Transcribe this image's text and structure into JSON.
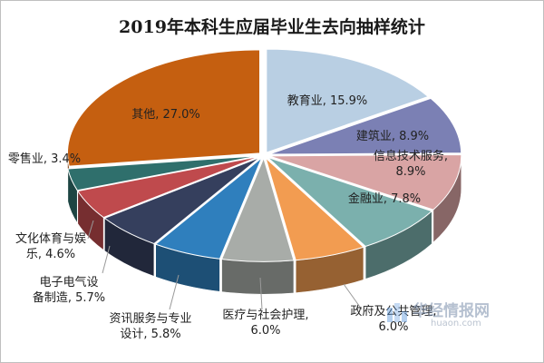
{
  "chart_data": {
    "type": "pie",
    "title": "2019年本科生应届毕业生去向抽样统计",
    "slices": [
      {
        "name": "教育业",
        "value": 15.9,
        "label": "教育业, 15.9%",
        "color": "#b9cfe3"
      },
      {
        "name": "建筑业",
        "value": 8.9,
        "label": "建筑业, 8.9%",
        "color": "#7b80b4"
      },
      {
        "name": "信息技术服务",
        "value": 8.9,
        "label": [
          "信息技术服务,",
          "8.9%"
        ],
        "color": "#d9a4a4"
      },
      {
        "name": "金融业",
        "value": 7.8,
        "label": "金融业, 7.8%",
        "color": "#7bb0ad"
      },
      {
        "name": "政府及公共管理",
        "value": 6.0,
        "label": [
          "政府及公共管理,",
          "6.0%"
        ],
        "color": "#f29c51"
      },
      {
        "name": "医疗与社会护理",
        "value": 6.0,
        "label": [
          "医疗与社会护理,",
          "6.0%"
        ],
        "color": "#a8aca8"
      },
      {
        "name": "资讯服务与专业设计",
        "value": 5.8,
        "label": [
          "资讯服务与专业",
          "设计, 5.8%"
        ],
        "color": "#2f7fbd"
      },
      {
        "name": "电子电气设备制造",
        "value": 5.7,
        "label": [
          "电子电气设",
          "备制造, 5.7%"
        ],
        "color": "#353f5d"
      },
      {
        "name": "文化体育与娱乐",
        "value": 4.6,
        "label": [
          "文化体育与娱",
          "乐, 4.6%"
        ],
        "color": "#bf4a4d"
      },
      {
        "name": "零售业",
        "value": 3.4,
        "label": "零售业, 3.4%",
        "color": "#2f6f6c"
      },
      {
        "name": "其他",
        "value": 27.0,
        "label": "其他, 27.0%",
        "color": "#c55f10"
      }
    ],
    "start_angle_deg": -90,
    "direction": "clockwise",
    "style": "3d-exploded",
    "legend": "none"
  },
  "watermark": {
    "text": "华经情报网",
    "url": "huaon.com"
  }
}
